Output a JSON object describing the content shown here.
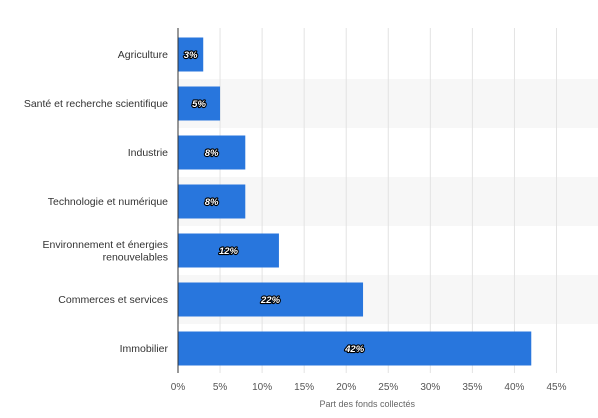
{
  "chart_data": {
    "type": "bar",
    "orientation": "horizontal",
    "categories": [
      "Agriculture",
      "Santé et recherche scientifique",
      "Industrie",
      "Technologie et numérique",
      "Environnement et énergies renouvelables",
      "Commerces et services",
      "Immobilier"
    ],
    "category_label_lines": [
      [
        "Agriculture"
      ],
      [
        "Santé et recherche scientifique"
      ],
      [
        "Industrie"
      ],
      [
        "Technologie et numérique"
      ],
      [
        "Environnement et énergies",
        "renouvelables"
      ],
      [
        "Commerces et services"
      ],
      [
        "Immobilier"
      ]
    ],
    "values": [
      3,
      5,
      8,
      8,
      12,
      22,
      42
    ],
    "data_labels": [
      "3%",
      "5%",
      "8%",
      "8%",
      "12%",
      "22%",
      "42%"
    ],
    "xlabel": "Part des fonds collectés",
    "xlim": [
      0,
      45
    ],
    "xticks": [
      0,
      5,
      10,
      15,
      20,
      25,
      30,
      35,
      40,
      45
    ],
    "xtick_labels": [
      "0%",
      "5%",
      "10%",
      "15%",
      "20%",
      "25%",
      "30%",
      "35%",
      "40%",
      "45%"
    ],
    "grid": true,
    "colors": {
      "bar": "#2876dd",
      "band": "#f7f7f7",
      "grid": "#e3e3e3",
      "axis": "#333333"
    }
  }
}
